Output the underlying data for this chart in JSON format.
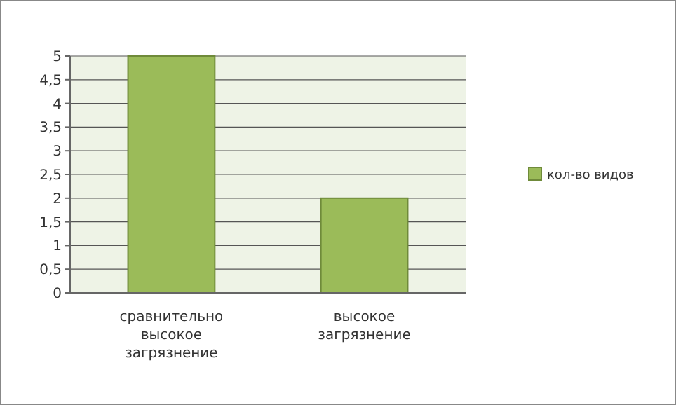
{
  "chart_data": {
    "type": "bar",
    "categories": [
      "сравнительно высокое загрязнение",
      "высокое загрязнение"
    ],
    "series": [
      {
        "name": "кол-во видов",
        "color": "#9bbb59",
        "values": [
          5,
          2
        ]
      }
    ],
    "ylim": [
      0,
      5
    ],
    "yticks": [
      0,
      {
        "value": 0.5,
        "label": "0,5"
      },
      1,
      {
        "value": 1.5,
        "label": "1,5"
      },
      2,
      {
        "value": 2.5,
        "label": "2,5"
      },
      3,
      {
        "value": 3.5,
        "label": "3,5"
      },
      4,
      {
        "value": 4.5,
        "label": "4,5"
      },
      5
    ],
    "grid": "y",
    "legend": "right"
  }
}
